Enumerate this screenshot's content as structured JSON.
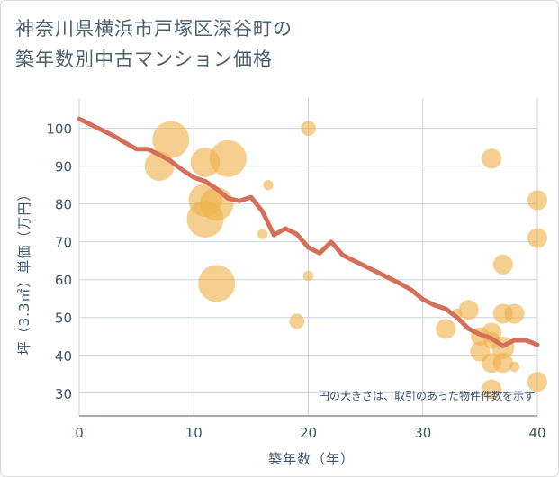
{
  "title": {
    "line1": "神奈川県横浜市戸塚区深谷町の",
    "line2": "築年数別中古マンション価格"
  },
  "colors": {
    "bubble": "#efb24a",
    "trend": "#d4705a",
    "grid": "#c9d3dd",
    "text": "#3f5468"
  },
  "chart_data": {
    "type": "scatter",
    "title": "神奈川県横浜市戸塚区深谷町の築年数別中古マンション価格",
    "xlabel": "築年数（年）",
    "ylabel": "坪（3.3㎡）単価（万円）",
    "xlim": [
      0,
      40
    ],
    "ylim": [
      24,
      108
    ],
    "xticks": [
      0,
      10,
      20,
      30,
      40
    ],
    "yticks": [
      30,
      40,
      50,
      60,
      70,
      80,
      90,
      100
    ],
    "grid": true,
    "note": "円の大きさは、取引のあった物件件数を示す",
    "bubbles": [
      {
        "x": 7,
        "y": 90,
        "count": 3
      },
      {
        "x": 8,
        "y": 97,
        "count": 5
      },
      {
        "x": 11,
        "y": 91,
        "count": 3
      },
      {
        "x": 11,
        "y": 81,
        "count": 4
      },
      {
        "x": 11,
        "y": 76,
        "count": 5
      },
      {
        "x": 12,
        "y": 80,
        "count": 4
      },
      {
        "x": 12,
        "y": 59,
        "count": 5
      },
      {
        "x": 13,
        "y": 92,
        "count": 5
      },
      {
        "x": 16.5,
        "y": 85,
        "count": 0.2
      },
      {
        "x": 16,
        "y": 72,
        "count": 0.2
      },
      {
        "x": 19,
        "y": 49,
        "count": 0.6
      },
      {
        "x": 20,
        "y": 100,
        "count": 0.6
      },
      {
        "x": 20,
        "y": 61,
        "count": 0.2
      },
      {
        "x": 32,
        "y": 47,
        "count": 1.2
      },
      {
        "x": 33,
        "y": 51,
        "count": 0.2
      },
      {
        "x": 34,
        "y": 52,
        "count": 1.2
      },
      {
        "x": 35,
        "y": 45,
        "count": 1
      },
      {
        "x": 35,
        "y": 41,
        "count": 1.2
      },
      {
        "x": 36,
        "y": 92,
        "count": 1.2
      },
      {
        "x": 36,
        "y": 46,
        "count": 1.2
      },
      {
        "x": 36,
        "y": 44,
        "count": 0.8
      },
      {
        "x": 36,
        "y": 38,
        "count": 1.2
      },
      {
        "x": 36,
        "y": 31,
        "count": 1.2
      },
      {
        "x": 37,
        "y": 64,
        "count": 1.2
      },
      {
        "x": 37,
        "y": 51,
        "count": 1.2
      },
      {
        "x": 37,
        "y": 42,
        "count": 1.6
      },
      {
        "x": 37,
        "y": 38,
        "count": 1.2
      },
      {
        "x": 38,
        "y": 51,
        "count": 1.2
      },
      {
        "x": 38,
        "y": 37,
        "count": 0.2
      },
      {
        "x": 40,
        "y": 81,
        "count": 1.2
      },
      {
        "x": 40,
        "y": 71,
        "count": 1.2
      },
      {
        "x": 40,
        "y": 33,
        "count": 1.2
      }
    ],
    "trend": {
      "x": [
        0,
        1,
        2,
        3,
        4,
        5,
        6,
        7,
        8,
        9,
        10,
        11,
        12,
        13,
        14,
        15,
        16,
        17,
        18,
        19,
        20,
        21,
        22,
        23,
        24,
        25,
        26,
        27,
        28,
        29,
        30,
        31,
        32,
        33,
        34,
        35,
        36,
        37,
        38,
        39,
        40
      ],
      "y": [
        102.5,
        101,
        99.5,
        98,
        96.2,
        94.5,
        94.5,
        93,
        91.3,
        89,
        87,
        86,
        84,
        81.5,
        80.8,
        81.8,
        78,
        71.8,
        73.5,
        72,
        68.5,
        67,
        70,
        66.5,
        65,
        63.5,
        62,
        60.5,
        59,
        57.3,
        54.8,
        53.3,
        52.3,
        50,
        47,
        45.5,
        44.5,
        42.5,
        44,
        44,
        42.8
      ]
    }
  }
}
